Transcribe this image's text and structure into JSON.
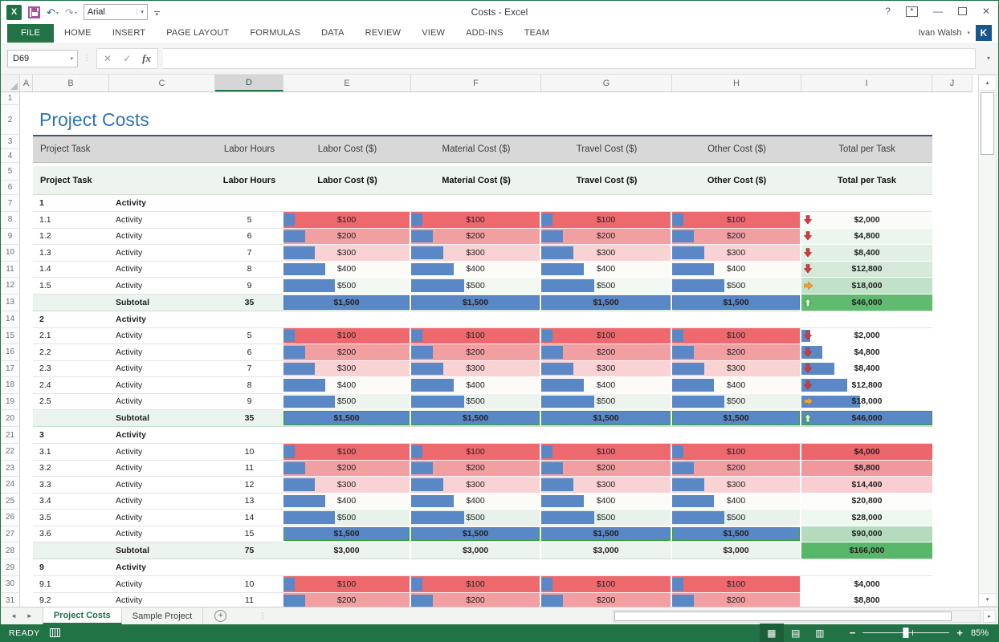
{
  "window": {
    "title": "Costs - Excel",
    "help": "?",
    "user_name": "Ivan Walsh",
    "avatar_initial": "K"
  },
  "qat": {
    "font_box": "Arial"
  },
  "ribbon_tabs": [
    {
      "label": "FILE",
      "active": true
    },
    {
      "label": "HOME",
      "active": false
    },
    {
      "label": "INSERT",
      "active": false
    },
    {
      "label": "PAGE LAYOUT",
      "active": false
    },
    {
      "label": "FORMULAS",
      "active": false
    },
    {
      "label": "DATA",
      "active": false
    },
    {
      "label": "REVIEW",
      "active": false
    },
    {
      "label": "VIEW",
      "active": false
    },
    {
      "label": "ADD-INS",
      "active": false
    },
    {
      "label": "TEAM",
      "active": false
    }
  ],
  "formula_bar": {
    "name_box": "D69",
    "formula": "",
    "fx_label": "fx"
  },
  "grid": {
    "columns": [
      "A",
      "B",
      "C",
      "D",
      "E",
      "F",
      "G",
      "H",
      "I",
      "J"
    ],
    "selected_column": "D",
    "row_count": 31,
    "title": "Project Costs",
    "header": [
      "Project Task",
      "Labor Hours",
      "Labor Cost ($)",
      "Material Cost ($)",
      "Travel Cost ($)",
      "Other Cost ($)",
      "Total per Task"
    ],
    "subtotal_label": "Subtotal",
    "groups": [
      {
        "number": "1",
        "name": "Activity",
        "rows": [
          {
            "task": "1.1",
            "activity": "Activity",
            "hours": "5",
            "cost": "$100",
            "cost_bg": "#EE696D",
            "bar_pct": 9,
            "total": "$2,000",
            "total_bg": "#FBFBF9",
            "icon": "down",
            "total_bar_pct": 0
          },
          {
            "task": "1.2",
            "activity": "Activity",
            "hours": "6",
            "cost": "$200",
            "cost_bg": "#F29FA2",
            "bar_pct": 17,
            "total": "$4,800",
            "total_bg": "#EDF5EF",
            "icon": "down",
            "total_bar_pct": 0
          },
          {
            "task": "1.3",
            "activity": "Activity",
            "hours": "7",
            "cost": "$300",
            "cost_bg": "#F9D2D4",
            "bar_pct": 25,
            "total": "$8,400",
            "total_bg": "#E2EFE5",
            "icon": "down",
            "total_bar_pct": 0
          },
          {
            "task": "1.4",
            "activity": "Activity",
            "hours": "8",
            "cost": "$400",
            "cost_bg": "#FCFBF8",
            "bar_pct": 33,
            "total": "$12,800",
            "total_bg": "#D4E9D9",
            "icon": "down",
            "total_bar_pct": 0
          },
          {
            "task": "1.5",
            "activity": "Activity",
            "hours": "9",
            "cost": "$500",
            "cost_bg": "#F3F8F3",
            "bar_pct": 41,
            "total": "$18,000",
            "total_bg": "#C2E1C9",
            "icon": "right",
            "total_bar_pct": 0
          }
        ],
        "subtotal": {
          "hours": "35",
          "cost": "$1,500",
          "bar_pct": 100,
          "bar_border": "#4D79B3",
          "total": "$46,000",
          "total_bg": "#60BA70",
          "icon": "up",
          "total_bar_pct": 0
        }
      },
      {
        "number": "2",
        "name": "Activity",
        "rows": [
          {
            "task": "2.1",
            "activity": "Activity",
            "hours": "5",
            "cost": "$100",
            "cost_bg": "#EE696D",
            "bar_pct": 9,
            "total": "$2,000",
            "total_bg": "#FFFFFF",
            "icon": "down",
            "total_bar_pct": 7
          },
          {
            "task": "2.2",
            "activity": "Activity",
            "hours": "6",
            "cost": "$200",
            "cost_bg": "#F29FA2",
            "bar_pct": 17,
            "total": "$4,800",
            "total_bg": "#FFFFFF",
            "icon": "down",
            "total_bar_pct": 16
          },
          {
            "task": "2.3",
            "activity": "Activity",
            "hours": "7",
            "cost": "$300",
            "cost_bg": "#F9D2D4",
            "bar_pct": 25,
            "total": "$8,400",
            "total_bg": "#FFFFFF",
            "icon": "down",
            "total_bar_pct": 25
          },
          {
            "task": "2.4",
            "activity": "Activity",
            "hours": "8",
            "cost": "$400",
            "cost_bg": "#FCFBF8",
            "bar_pct": 33,
            "total": "$12,800",
            "total_bg": "#FFFFFF",
            "icon": "down",
            "total_bar_pct": 35
          },
          {
            "task": "2.5",
            "activity": "Activity",
            "hours": "9",
            "cost": "$500",
            "cost_bg": "#ECF4ED",
            "bar_pct": 41,
            "total": "$18,000",
            "total_bg": "#FFFFFF",
            "icon": "right",
            "total_bar_pct": 45
          }
        ],
        "subtotal": {
          "hours": "35",
          "cost": "$1,500",
          "bar_pct": 100,
          "bar_border": "#2DA52D",
          "total": "$46,000",
          "total_bg": "#E9F2EC",
          "icon": "up",
          "total_bar_pct": 100
        }
      },
      {
        "number": "3",
        "name": "Activity",
        "rows": [
          {
            "task": "3.1",
            "activity": "Activity",
            "hours": "10",
            "cost": "$100",
            "cost_bg": "#EE696D",
            "bar_pct": 9,
            "total": "$4,000",
            "total_bg": "#EC676B",
            "icon": null,
            "total_bar_pct": 0
          },
          {
            "task": "3.2",
            "activity": "Activity",
            "hours": "11",
            "cost": "$200",
            "cost_bg": "#F29FA2",
            "bar_pct": 17,
            "total": "$8,800",
            "total_bg": "#F0989B",
            "icon": null,
            "total_bar_pct": 0
          },
          {
            "task": "3.3",
            "activity": "Activity",
            "hours": "12",
            "cost": "$300",
            "cost_bg": "#F9D2D4",
            "bar_pct": 25,
            "total": "$14,400",
            "total_bg": "#F8CED1",
            "icon": null,
            "total_bar_pct": 0
          },
          {
            "task": "3.4",
            "activity": "Activity",
            "hours": "13",
            "cost": "$400",
            "cost_bg": "#FCFBF8",
            "bar_pct": 33,
            "total": "$20,800",
            "total_bg": "#FDFDFB",
            "icon": null,
            "total_bar_pct": 0
          },
          {
            "task": "3.5",
            "activity": "Activity",
            "hours": "14",
            "cost": "$500",
            "cost_bg": "#E8F2EA",
            "bar_pct": 41,
            "total": "$28,000",
            "total_bg": "#EFF7F1",
            "icon": null,
            "total_bar_pct": 0
          },
          {
            "task": "3.6",
            "activity": "Activity",
            "hours": "15",
            "cost": "$1,500",
            "cost_bg": "#FFFFFF",
            "bar_pct": 100,
            "bar_border": "#2DA52D",
            "total": "$90,000",
            "total_bg": "#B4DBBC",
            "icon": null,
            "total_bar_pct": 0
          }
        ],
        "subtotal": {
          "hours": "75",
          "cost": "$3,000",
          "bar_pct": 0,
          "total": "$166,000",
          "total_bg": "#58B669",
          "icon": null,
          "total_bar_pct": 0
        }
      },
      {
        "number": "9",
        "name": "Activity",
        "rows": [
          {
            "task": "9.1",
            "activity": "Activity",
            "hours": "10",
            "cost": "$100",
            "cost_bg": "#EE696D",
            "bar_pct": 9,
            "total": "$4,000",
            "total_bg": "#FFFFFF",
            "icon": null,
            "total_bar_pct": 0
          },
          {
            "task": "9.2",
            "activity": "Activity",
            "hours": "11",
            "cost": "$200",
            "cost_bg": "#F29FA2",
            "bar_pct": 17,
            "total": "$8,800",
            "total_bg": "#FFFFFF",
            "icon": null,
            "total_bar_pct": 0
          }
        ],
        "subtotal": null
      }
    ]
  },
  "sheet_tabs": [
    {
      "label": "Project Costs",
      "active": true
    },
    {
      "label": "Sample Project",
      "active": false
    }
  ],
  "status_bar": {
    "mode": "READY",
    "zoom_level": "85%"
  },
  "colors": {
    "excel_green": "#217346",
    "bar_blue": "#5A87C5",
    "title_blue": "#2E74B5",
    "icon_red": "#D13B40",
    "icon_orange": "#ECA23D",
    "icon_green": "#3E9E41"
  }
}
